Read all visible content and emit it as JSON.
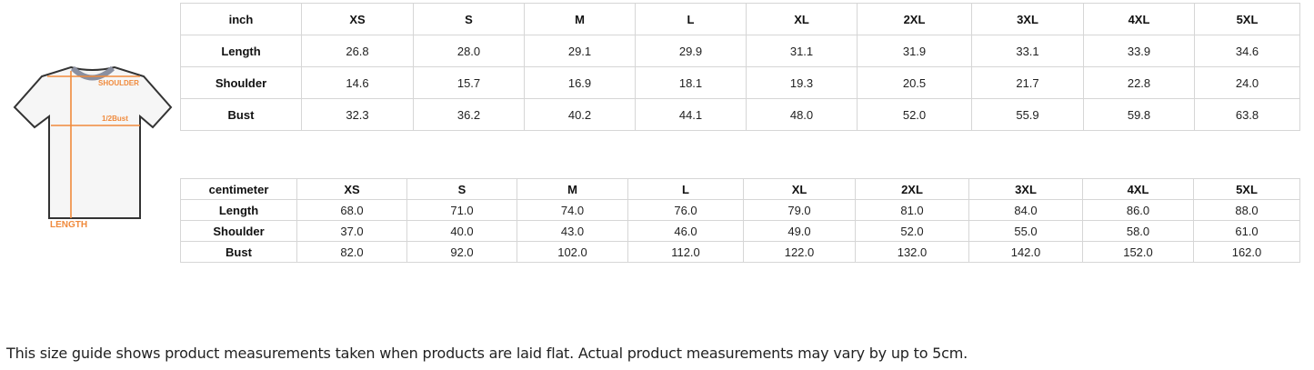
{
  "image": {
    "shoulder_label": "SHOULDER",
    "bust_label": "1/2Bust",
    "length_label": "LENGTH",
    "accent": "#f08a3c"
  },
  "inch_table": {
    "headers": [
      "inch",
      "XS",
      "S",
      "M",
      "L",
      "XL",
      "2XL",
      "3XL",
      "4XL",
      "5XL"
    ],
    "rows": [
      {
        "label": "Length",
        "values": [
          "26.8",
          "28.0",
          "29.1",
          "29.9",
          "31.1",
          "31.9",
          "33.1",
          "33.9",
          "34.6"
        ]
      },
      {
        "label": "Shoulder",
        "values": [
          "14.6",
          "15.7",
          "16.9",
          "18.1",
          "19.3",
          "20.5",
          "21.7",
          "22.8",
          "24.0"
        ]
      },
      {
        "label": "Bust",
        "values": [
          "32.3",
          "36.2",
          "40.2",
          "44.1",
          "48.0",
          "52.0",
          "55.9",
          "59.8",
          "63.8"
        ]
      }
    ]
  },
  "cm_table": {
    "headers": [
      "centimeter",
      "XS",
      "S",
      "M",
      "L",
      "XL",
      "2XL",
      "3XL",
      "4XL",
      "5XL"
    ],
    "rows": [
      {
        "label": "Length",
        "values": [
          "68.0",
          "71.0",
          "74.0",
          "76.0",
          "79.0",
          "81.0",
          "84.0",
          "86.0",
          "88.0"
        ]
      },
      {
        "label": "Shoulder",
        "values": [
          "37.0",
          "40.0",
          "43.0",
          "46.0",
          "49.0",
          "52.0",
          "55.0",
          "58.0",
          "61.0"
        ]
      },
      {
        "label": "Bust",
        "values": [
          "82.0",
          "92.0",
          "102.0",
          "112.0",
          "122.0",
          "132.0",
          "142.0",
          "152.0",
          "162.0"
        ]
      }
    ]
  },
  "note": "This size guide shows product measurements taken when products are laid flat. Actual product measurements may vary by up to 5cm."
}
